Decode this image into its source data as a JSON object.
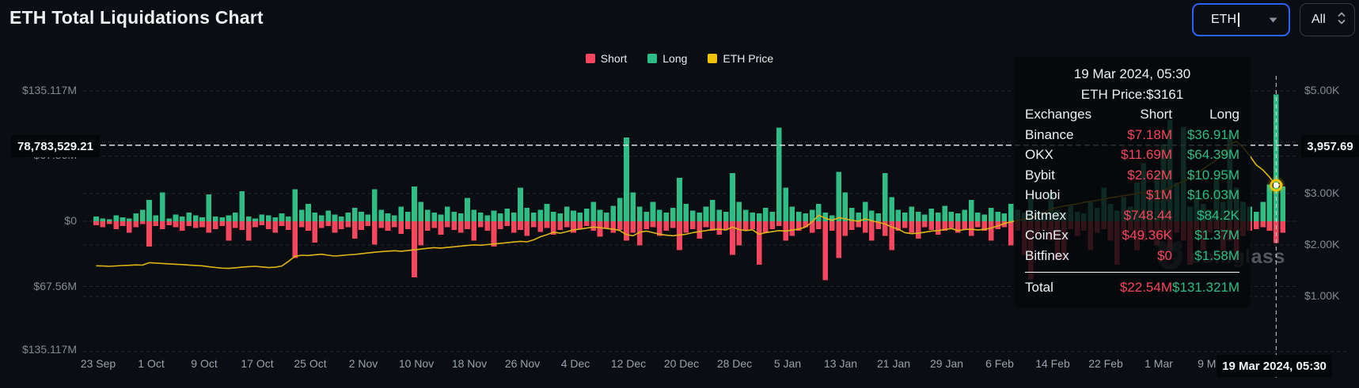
{
  "header": {
    "title": "ETH Total Liquidations Chart"
  },
  "controls": {
    "symbol_select": {
      "value": "ETH",
      "icon": "chevron-down-icon"
    },
    "range_select": {
      "value": "All",
      "icon": "unfold-icon"
    }
  },
  "legend": [
    {
      "label": "Short",
      "color": "#f6465d"
    },
    {
      "label": "Long",
      "color": "#2ebd85"
    },
    {
      "label": "ETH Price",
      "color": "#f0c20c"
    }
  ],
  "watermark": {
    "text": "coinglass"
  },
  "tooltip": {
    "date": "19 Mar 2024, 05:30",
    "price_line": "ETH Price:$3161",
    "columns": [
      "Exchanges",
      "Short",
      "Long"
    ],
    "rows": [
      {
        "exchange": "Binance",
        "short": "$7.18M",
        "long": "$36.91M"
      },
      {
        "exchange": "OKX",
        "short": "$11.69M",
        "long": "$64.39M"
      },
      {
        "exchange": "Bybit",
        "short": "$2.62M",
        "long": "$10.95M"
      },
      {
        "exchange": "Huobi",
        "short": "$1M",
        "long": "$16.03M"
      },
      {
        "exchange": "Bitmex",
        "short": "$748.44",
        "long": "$84.2K"
      },
      {
        "exchange": "CoinEx",
        "short": "$49.36K",
        "long": "$1.37M"
      },
      {
        "exchange": "Bitfinex",
        "short": "$0",
        "long": "$1.58M"
      }
    ],
    "total": {
      "label": "Total",
      "short": "$22.54M",
      "long": "$131.321M"
    }
  },
  "chart_data": {
    "type": "bar+line",
    "title": "ETH Total Liquidations Chart",
    "legend_entries": [
      "Short",
      "Long",
      "ETH Price"
    ],
    "start_date": "23 Sep 2023",
    "interval_days": 1,
    "x_tick_labels": [
      "23 Sep",
      "1 Oct",
      "9 Oct",
      "17 Oct",
      "25 Oct",
      "2 Nov",
      "10 Nov",
      "18 Nov",
      "26 Nov",
      "4 Dec",
      "12 Dec",
      "20 Dec",
      "28 Dec",
      "5 Jan",
      "13 Jan",
      "21 Jan",
      "29 Jan",
      "6 Feb",
      "14 Feb",
      "22 Feb",
      "1 Mar",
      "9 Mar"
    ],
    "left_axis": {
      "tick_labels": [
        "$135.117M",
        "$67.56M",
        "$0",
        "$67.56M",
        "$135.117M"
      ],
      "tick_values_musd": [
        135.117,
        67.56,
        0,
        -67.56,
        -135.117
      ],
      "range_musd": [
        -135.117,
        135.117
      ]
    },
    "right_axis": {
      "tick_labels": [
        "$5.00K",
        "$3.00K",
        "$2.00K",
        "$1.00K"
      ],
      "tick_values_usd": [
        5000,
        3000,
        2000,
        1000
      ],
      "hidden_tick_usd": 4000,
      "range_usd": [
        1000,
        5000
      ]
    },
    "crosshair": {
      "day_index": 178,
      "date_label": "19 Mar 2024, 05:30",
      "left_value_label": "78,783,529.21",
      "right_value_label": "3,957.69",
      "price_usd": 3161
    },
    "colors": {
      "short": "#f6465d",
      "long": "#2ebd85",
      "price": "#ddb514",
      "grid": "#272c34",
      "crosshair": "#e8eaed"
    },
    "series": {
      "long_musd": [
        5,
        3,
        2,
        6,
        4,
        3,
        8,
        12,
        22,
        6,
        30,
        3,
        7,
        5,
        9,
        6,
        4,
        28,
        5,
        4,
        6,
        9,
        31,
        5,
        3,
        7,
        6,
        4,
        8,
        5,
        33,
        12,
        18,
        9,
        6,
        11,
        7,
        5,
        9,
        14,
        10,
        7,
        33,
        12,
        8,
        6,
        15,
        10,
        36,
        20,
        12,
        9,
        7,
        15,
        10,
        8,
        24,
        12,
        9,
        6,
        11,
        8,
        13,
        9,
        35,
        14,
        9,
        12,
        18,
        10,
        8,
        15,
        11,
        9,
        13,
        20,
        12,
        9,
        16,
        24,
        87,
        30,
        15,
        10,
        20,
        12,
        9,
        14,
        45,
        18,
        11,
        9,
        15,
        22,
        12,
        10,
        50,
        20,
        12,
        9,
        8,
        14,
        10,
        97,
        35,
        15,
        10,
        8,
        12,
        18,
        9,
        6,
        51,
        30,
        14,
        9,
        20,
        11,
        8,
        50,
        25,
        12,
        9,
        15,
        10,
        7,
        13,
        9,
        16,
        10,
        8,
        12,
        22,
        9,
        7,
        14,
        10,
        8,
        18,
        12,
        9,
        25,
        11,
        8,
        30,
        12,
        9,
        16,
        10,
        8,
        20,
        14,
        35,
        18,
        11,
        25,
        15,
        40,
        60,
        30,
        50,
        80,
        105,
        40,
        98,
        15,
        30,
        18,
        12,
        45,
        20,
        90,
        35,
        20,
        15,
        10,
        20,
        38,
        131.321,
        36
      ],
      "short_musd": [
        4,
        6,
        3,
        8,
        5,
        12,
        6,
        3,
        26,
        5,
        8,
        4,
        6,
        10,
        5,
        7,
        6,
        12,
        8,
        5,
        20,
        7,
        9,
        20,
        6,
        4,
        8,
        12,
        5,
        9,
        38,
        6,
        10,
        22,
        7,
        5,
        12,
        8,
        6,
        18,
        9,
        5,
        24,
        7,
        10,
        6,
        13,
        8,
        58,
        25,
        10,
        7,
        14,
        6,
        9,
        12,
        8,
        20,
        6,
        10,
        26,
        8,
        5,
        12,
        9,
        15,
        6,
        11,
        7,
        14,
        9,
        6,
        12,
        8,
        5,
        10,
        16,
        7,
        12,
        9,
        20,
        12,
        25,
        8,
        6,
        15,
        10,
        7,
        30,
        12,
        8,
        18,
        6,
        10,
        14,
        8,
        35,
        25,
        10,
        8,
        45,
        12,
        8,
        5,
        20,
        15,
        10,
        6,
        12,
        8,
        61,
        10,
        38,
        15,
        9,
        6,
        12,
        20,
        8,
        15,
        30,
        10,
        7,
        12,
        18,
        6,
        9,
        14,
        10,
        7,
        12,
        8,
        15,
        6,
        10,
        20,
        8,
        6,
        25,
        10,
        35,
        60,
        15,
        10,
        20,
        40,
        40,
        8,
        15,
        10,
        30,
        12,
        8,
        20,
        45,
        15,
        10,
        30,
        20,
        12,
        25,
        15,
        30,
        12,
        20,
        45,
        10,
        30,
        12,
        8,
        30,
        20,
        40,
        15,
        10,
        8,
        6,
        10,
        22.54,
        12
      ],
      "eth_price_usd": [
        1595,
        1590,
        1585,
        1592,
        1600,
        1605,
        1612,
        1608,
        1655,
        1648,
        1640,
        1632,
        1625,
        1618,
        1610,
        1602,
        1594,
        1575,
        1562,
        1550,
        1545,
        1555,
        1568,
        1578,
        1585,
        1572,
        1560,
        1566,
        1590,
        1680,
        1780,
        1800,
        1795,
        1810,
        1820,
        1800,
        1785,
        1795,
        1808,
        1815,
        1830,
        1845,
        1858,
        1870,
        1880,
        1888,
        1878,
        1890,
        1905,
        1920,
        1935,
        1948,
        1940,
        1952,
        1965,
        1978,
        1990,
        2002,
        1995,
        2008,
        2020,
        2032,
        2045,
        2058,
        2070,
        2062,
        2100,
        2160,
        2200,
        2250,
        2230,
        2260,
        2295,
        2310,
        2330,
        2350,
        2340,
        2320,
        2310,
        2280,
        2200,
        2180,
        2250,
        2270,
        2240,
        2210,
        2190,
        2180,
        2195,
        2210,
        2240,
        2260,
        2280,
        2300,
        2310,
        2290,
        2350,
        2300,
        2280,
        2295,
        2210,
        2240,
        2260,
        2280,
        2270,
        2290,
        2310,
        2350,
        2450,
        2580,
        2520,
        2480,
        2530,
        2510,
        2480,
        2460,
        2510,
        2470,
        2440,
        2410,
        2350,
        2310,
        2240,
        2220,
        2230,
        2250,
        2270,
        2280,
        2300,
        2320,
        2280,
        2300,
        2310,
        2290,
        2305,
        2330,
        2370,
        2420,
        2450,
        2480,
        2500,
        2520,
        2560,
        2620,
        2700,
        2730,
        2760,
        2780,
        2800,
        2830,
        2850,
        2870,
        2890,
        2920,
        2940,
        2960,
        2980,
        3000,
        3020,
        2980,
        3000,
        3060,
        3120,
        3180,
        3240,
        3300,
        3380,
        3480,
        3570,
        3660,
        3750,
        3957,
        4020,
        3900,
        3740,
        3560,
        3460,
        3320,
        3161,
        3180
      ]
    }
  }
}
